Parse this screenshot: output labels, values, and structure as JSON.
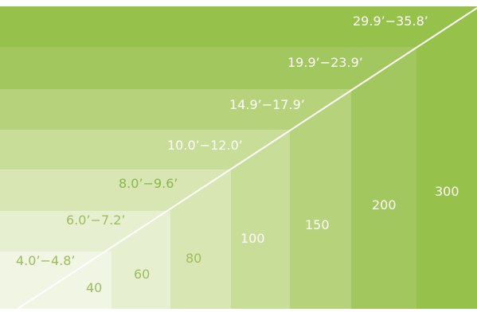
{
  "diagram": {
    "colors": {
      "band_1": "#f1f5e4",
      "band_2": "#e6efcf",
      "band_3": "#d7e6b3",
      "band_4": "#c8dd98",
      "band_5": "#b6d37c",
      "band_6": "#a2c75e",
      "band_7": "#96c14a",
      "diagonal": "#ffffff"
    },
    "range_labels": [
      "4.0’−4.8’",
      "6.0’−7.2’",
      "8.0’−9.6’",
      "10.0’−12.0’",
      "14.9’−17.9’",
      "19.9’−23.9’",
      "29.9’−35.8’"
    ],
    "value_labels": [
      "40",
      "60",
      "80",
      "100",
      "150",
      "200",
      "300"
    ]
  }
}
